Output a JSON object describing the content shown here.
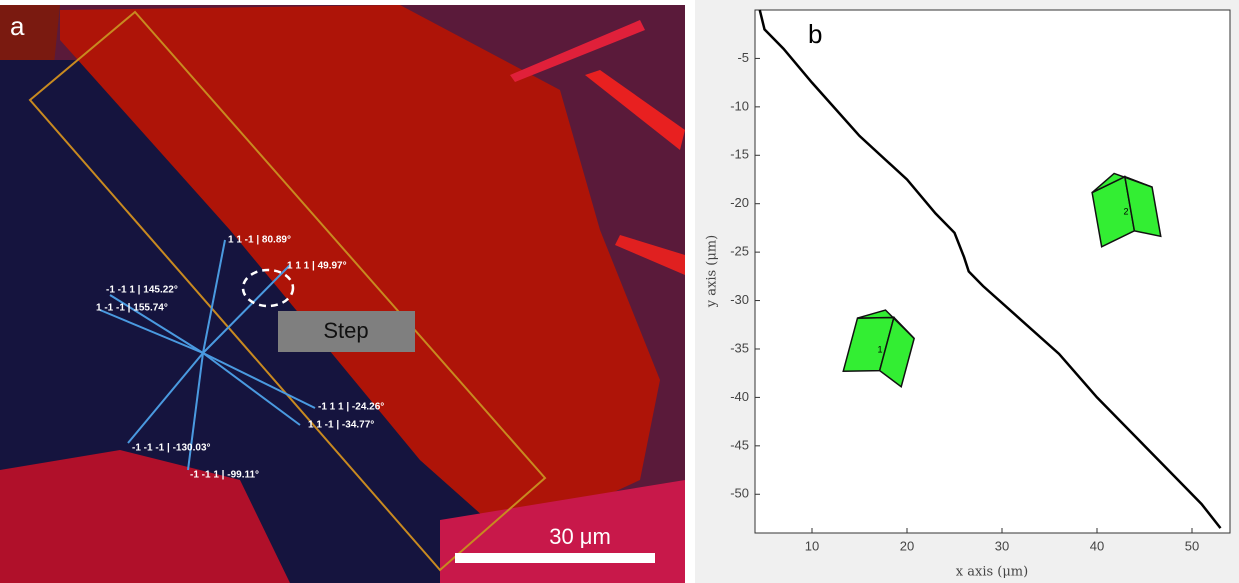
{
  "panel_a": {
    "label": "a",
    "orientations": [
      "1 1 -1 | 80.89°",
      "1 1 1 | 49.97°",
      "-1 -1 1 | 145.22°",
      "1 -1 -1 | 155.74°",
      "-1 1 1 | -24.26°",
      "1 1 -1 | -34.77°",
      "-1 -1 -1 | -130.03°",
      "-1 -1 1 | -99.11°"
    ],
    "step": "Step",
    "scale_bar": "30 μm"
  },
  "chart_data": {
    "type": "line",
    "panel_label": "b",
    "x_label": "x axis (μm)",
    "y_label": "y axis (μm)",
    "x": [
      4.5,
      5,
      7,
      10,
      15,
      20,
      23,
      25,
      26,
      26.5,
      28,
      32,
      36,
      40,
      44,
      48,
      51,
      53
    ],
    "values": [
      0,
      -2,
      -4,
      -7.5,
      -13,
      -17.5,
      -21,
      -23,
      -25.5,
      -27,
      -28.5,
      -32,
      -35.5,
      -40,
      -44,
      -48,
      -51,
      -53.5
    ],
    "color": "#000000",
    "annotations": [
      "1",
      "2"
    ],
    "xlim": [
      4,
      54
    ],
    "ylim": [
      -54,
      0
    ],
    "xticks": [
      10,
      20,
      30,
      40,
      50
    ],
    "yticks": [
      -5,
      -10,
      -15,
      -20,
      -25,
      -30,
      -35,
      -40,
      -45,
      -50
    ]
  }
}
